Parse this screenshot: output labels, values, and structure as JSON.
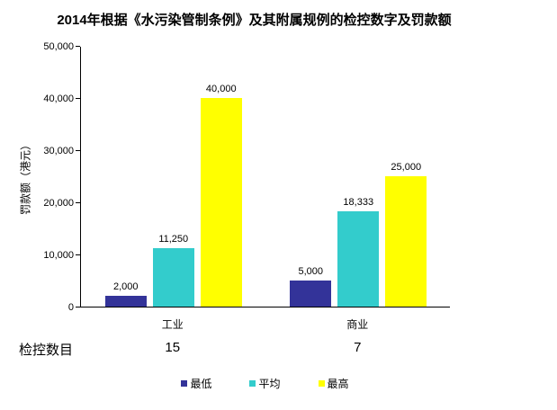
{
  "title": "2014年根据《水污染管制条例》及其附属规例的检控数字及罚款额",
  "chart_data": {
    "type": "bar",
    "title": "2014年根据《水污染管制条例》及其附属规例的检控数字及罚款额",
    "categories": [
      "工业",
      "商业"
    ],
    "series": [
      {
        "name": "最低",
        "color": "#333399",
        "values": [
          2000,
          5000
        ],
        "labels": [
          "2,000",
          "5,000"
        ]
      },
      {
        "name": "平均",
        "color": "#33CCCC",
        "values": [
          11250,
          18333
        ],
        "labels": [
          "11,250",
          "18,333"
        ]
      },
      {
        "name": "最高",
        "color": "#FFFF00",
        "values": [
          40000,
          25000
        ],
        "labels": [
          "40,000",
          "25,000"
        ]
      }
    ],
    "ylabel": "罚款额（港元）",
    "xlabel": "",
    "ylim": [
      0,
      50000
    ],
    "ytick_interval": 10000,
    "ytick_labels": [
      "0",
      "10,000",
      "20,000",
      "30,000",
      "40,000",
      "50,000"
    ],
    "grid": false,
    "legend_position": "bottom"
  },
  "prosecution_row": {
    "label": "检控数目",
    "values": [
      "15",
      "7"
    ]
  }
}
